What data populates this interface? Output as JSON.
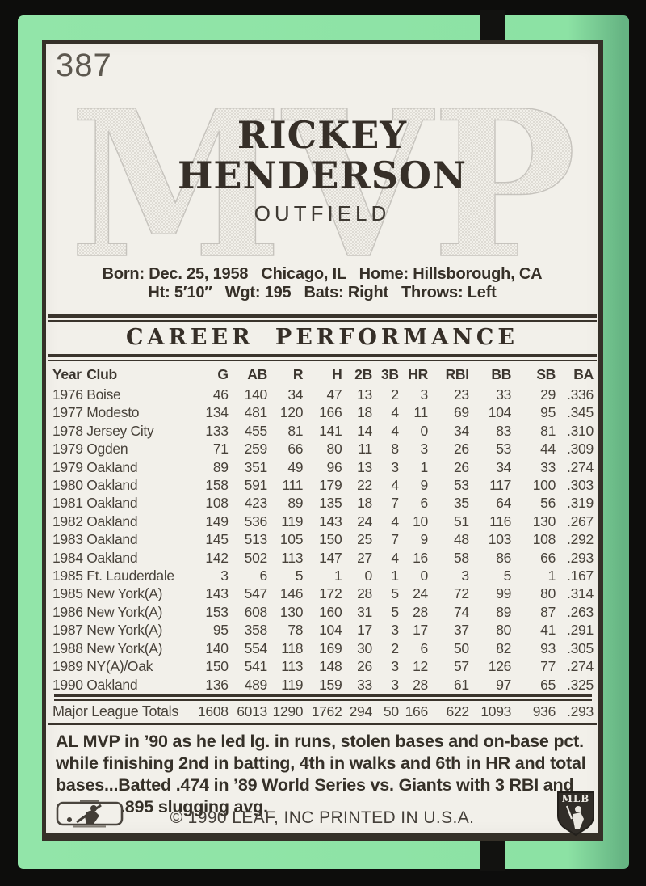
{
  "card": {
    "number": "387",
    "watermark": "MVP",
    "player": {
      "first_name": "RICKEY",
      "last_name": "HENDERSON",
      "position": "OUTFIELD"
    },
    "bio": {
      "line1": "Born: Dec. 25, 1958   Chicago, IL   Home: Hillsborough, CA",
      "line2": "Ht: 5′10″   Wgt: 195   Bats: Right   Throws: Left"
    },
    "section_title": "CAREER PERFORMANCE",
    "stats": {
      "columns": [
        "Year",
        "Club",
        "G",
        "AB",
        "R",
        "H",
        "2B",
        "3B",
        "HR",
        "RBI",
        "BB",
        "SB",
        "BA"
      ],
      "rows": [
        {
          "year": "1976",
          "club": "Boise",
          "values": [
            "46",
            "140",
            "34",
            "47",
            "13",
            "2",
            "3",
            "23",
            "33",
            "29",
            ".336"
          ]
        },
        {
          "year": "1977",
          "club": "Modesto",
          "values": [
            "134",
            "481",
            "120",
            "166",
            "18",
            "4",
            "11",
            "69",
            "104",
            "95",
            ".345"
          ]
        },
        {
          "year": "1978",
          "club": "Jersey City",
          "values": [
            "133",
            "455",
            "81",
            "141",
            "14",
            "4",
            "0",
            "34",
            "83",
            "81",
            ".310"
          ]
        },
        {
          "year": "1979",
          "club": "Ogden",
          "values": [
            "71",
            "259",
            "66",
            "80",
            "11",
            "8",
            "3",
            "26",
            "53",
            "44",
            ".309"
          ]
        },
        {
          "year": "1979",
          "club": "Oakland",
          "values": [
            "89",
            "351",
            "49",
            "96",
            "13",
            "3",
            "1",
            "26",
            "34",
            "33",
            ".274"
          ]
        },
        {
          "year": "1980",
          "club": "Oakland",
          "values": [
            "158",
            "591",
            "111",
            "179",
            "22",
            "4",
            "9",
            "53",
            "117",
            "100",
            ".303"
          ]
        },
        {
          "year": "1981",
          "club": "Oakland",
          "values": [
            "108",
            "423",
            "89",
            "135",
            "18",
            "7",
            "6",
            "35",
            "64",
            "56",
            ".319"
          ]
        },
        {
          "year": "1982",
          "club": "Oakland",
          "values": [
            "149",
            "536",
            "119",
            "143",
            "24",
            "4",
            "10",
            "51",
            "116",
            "130",
            ".267"
          ]
        },
        {
          "year": "1983",
          "club": "Oakland",
          "values": [
            "145",
            "513",
            "105",
            "150",
            "25",
            "7",
            "9",
            "48",
            "103",
            "108",
            ".292"
          ]
        },
        {
          "year": "1984",
          "club": "Oakland",
          "values": [
            "142",
            "502",
            "113",
            "147",
            "27",
            "4",
            "16",
            "58",
            "86",
            "66",
            ".293"
          ]
        },
        {
          "year": "1985",
          "club": "Ft. Lauderdale",
          "values": [
            "3",
            "6",
            "5",
            "1",
            "0",
            "1",
            "0",
            "3",
            "5",
            "1",
            ".167"
          ]
        },
        {
          "year": "1985",
          "club": "New York(A)",
          "values": [
            "143",
            "547",
            "146",
            "172",
            "28",
            "5",
            "24",
            "72",
            "99",
            "80",
            ".314"
          ]
        },
        {
          "year": "1986",
          "club": "New York(A)",
          "values": [
            "153",
            "608",
            "130",
            "160",
            "31",
            "5",
            "28",
            "74",
            "89",
            "87",
            ".263"
          ]
        },
        {
          "year": "1987",
          "club": "New York(A)",
          "values": [
            "95",
            "358",
            "78",
            "104",
            "17",
            "3",
            "17",
            "37",
            "80",
            "41",
            ".291"
          ]
        },
        {
          "year": "1988",
          "club": "New York(A)",
          "values": [
            "140",
            "554",
            "118",
            "169",
            "30",
            "2",
            "6",
            "50",
            "82",
            "93",
            ".305"
          ]
        },
        {
          "year": "1989",
          "club": "NY(A)/Oak",
          "values": [
            "150",
            "541",
            "113",
            "148",
            "26",
            "3",
            "12",
            "57",
            "126",
            "77",
            ".274"
          ]
        },
        {
          "year": "1990",
          "club": "Oakland",
          "values": [
            "136",
            "489",
            "119",
            "159",
            "33",
            "3",
            "28",
            "61",
            "97",
            "65",
            ".325"
          ]
        }
      ],
      "totals": {
        "label": "Major League Totals",
        "values": [
          "1608",
          "6013",
          "1290",
          "1762",
          "294",
          "50",
          "166",
          "622",
          "1093",
          "936",
          ".293"
        ]
      }
    },
    "notes_lines": [
      "AL MVP in ’90 as he led lg. in runs, stolen bases and on-base pct.",
      "while finishing 2nd in batting, 4th in walks and 6th in HR and total",
      "bases...Batted .474 in ’89 World Series vs. Giants with 3 RBI and",
      ".895 slugging avg."
    ],
    "footer": {
      "copyright": "© 1990 LEAF, INC  PRINTED IN U.S.A.",
      "right_logo_text": "MLB"
    },
    "colors": {
      "border_green": "#8ce2a4",
      "panel_bg": "#f2f0ea",
      "frame": "#353028",
      "ink": "#3a342c",
      "table_ink": "#48423a",
      "number_gray": "#5d584f",
      "watermark_gray": "#cfccc5"
    }
  }
}
